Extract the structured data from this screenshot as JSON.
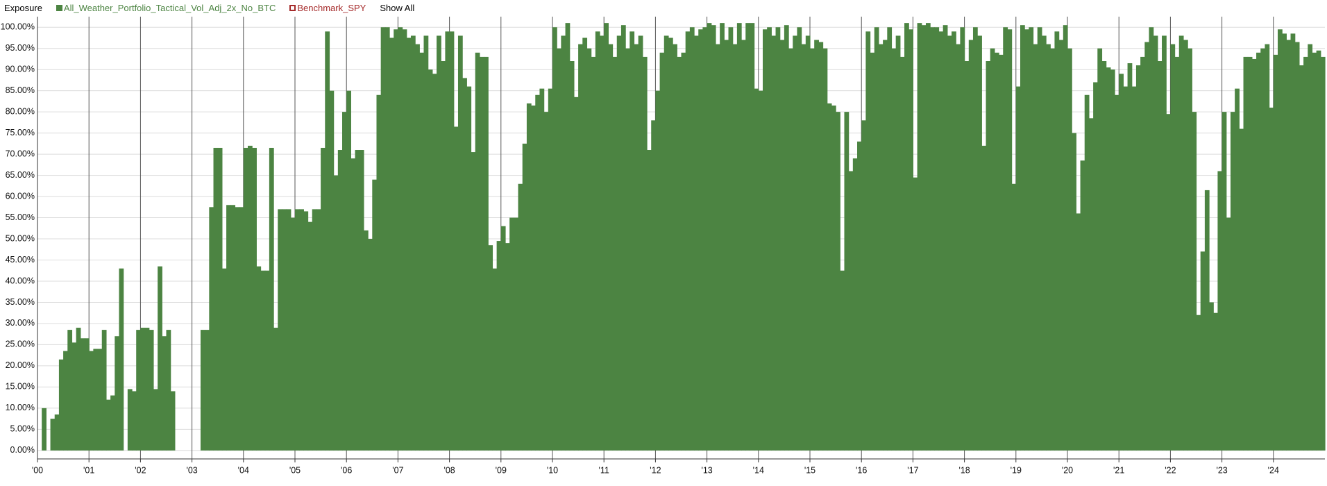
{
  "chart_data": {
    "type": "bar",
    "title": "Exposure",
    "show_all": "Show All",
    "series": [
      {
        "name": "All_Weather_Portfolio_Tactical_Vol_Adj_2x_No_BTC",
        "color": "#4c8442",
        "values": [
          0,
          10,
          0,
          7.5,
          8.5,
          21.5,
          23.5,
          28.5,
          25.5,
          29,
          26.5,
          26.5,
          23.5,
          24,
          24,
          28.5,
          12,
          13,
          27,
          43,
          0,
          14.5,
          14,
          28.5,
          29,
          29,
          28.5,
          14.5,
          43.5,
          27,
          28.5,
          14,
          0,
          0,
          0,
          0,
          0,
          0,
          28.5,
          28.5,
          57.5,
          71.5,
          71.5,
          43,
          58,
          58,
          57.5,
          57.5,
          71.5,
          72,
          71.5,
          43.5,
          42.5,
          42.5,
          71.5,
          29,
          57,
          57,
          57,
          55,
          57,
          57,
          56.5,
          54,
          57,
          57,
          71.5,
          99,
          85,
          65,
          71,
          80,
          85,
          69,
          71,
          71,
          52,
          50,
          64,
          84,
          100,
          100,
          97.5,
          99.5,
          100,
          99.5,
          97.5,
          98,
          96,
          94,
          98,
          90,
          89,
          98,
          92,
          99,
          99,
          76.5,
          98,
          88,
          86,
          70.5,
          94,
          93,
          93,
          48.5,
          43,
          49.5,
          53,
          49,
          55,
          55,
          63,
          72.5,
          82,
          81.5,
          84,
          85.5,
          80,
          85.5,
          100,
          95,
          98,
          101,
          92,
          83.5,
          96,
          97.5,
          95,
          93,
          99,
          98,
          101,
          96,
          93,
          98,
          100.5,
          95,
          99,
          96,
          98,
          93,
          71,
          78,
          85,
          94,
          98,
          97.5,
          96,
          93,
          94,
          99,
          100,
          98,
          99.5,
          100,
          101,
          100.5,
          96,
          101,
          97,
          100,
          96,
          101,
          97,
          101,
          101,
          85.5,
          85,
          99.5,
          100,
          98,
          100,
          97,
          100.5,
          95,
          98,
          100,
          96,
          98,
          95,
          97,
          96.5,
          95,
          82,
          81.5,
          80,
          42.5,
          80,
          66,
          69,
          73,
          78,
          99,
          94,
          100,
          96,
          97,
          100,
          95,
          98,
          93,
          101,
          99.5,
          64.5,
          101,
          100.5,
          101,
          100,
          100,
          99,
          100.5,
          98,
          99,
          96,
          100,
          92,
          97,
          100,
          98,
          72,
          92,
          95,
          94,
          93.5,
          100,
          99.5,
          63,
          86,
          100.5,
          99.5,
          100,
          96,
          100,
          98,
          96,
          95,
          99,
          97,
          100.5,
          95,
          75,
          56,
          68.5,
          84,
          78.5,
          87,
          95,
          92,
          90.5,
          90,
          84,
          89,
          86,
          91.5,
          86,
          91,
          93,
          96.5,
          100,
          98,
          92,
          98,
          79.5,
          96,
          93,
          98,
          97,
          95,
          80,
          32,
          47,
          61.5,
          35,
          32.5,
          66,
          80,
          55,
          80,
          85.5,
          76,
          93,
          93,
          92.5,
          94,
          95,
          96,
          81,
          93.5,
          99.5,
          98.5,
          97,
          98.5,
          96.5,
          91,
          93,
          96,
          94,
          94.5,
          93
        ]
      }
    ],
    "hidden_series": [
      {
        "name": "Benchmark_SPY",
        "color": "#a52a2a"
      }
    ],
    "categories": [
      "'00",
      null,
      null,
      null,
      null,
      null,
      null,
      null,
      null,
      null,
      null,
      null,
      "'01",
      null,
      null,
      null,
      null,
      null,
      null,
      null,
      null,
      null,
      null,
      null,
      "'02",
      null,
      null,
      null,
      null,
      null,
      null,
      null,
      null,
      null,
      null,
      null,
      "'03",
      null,
      null,
      null,
      null,
      null,
      null,
      null,
      null,
      null,
      null,
      null,
      "'04",
      null,
      null,
      null,
      null,
      null,
      null,
      null,
      null,
      null,
      null,
      null,
      "'05",
      null,
      null,
      null,
      null,
      null,
      null,
      null,
      null,
      null,
      null,
      null,
      "'06",
      null,
      null,
      null,
      null,
      null,
      null,
      null,
      null,
      null,
      null,
      null,
      "'07",
      null,
      null,
      null,
      null,
      null,
      null,
      null,
      null,
      null,
      null,
      null,
      "'08",
      null,
      null,
      null,
      null,
      null,
      null,
      null,
      null,
      null,
      null,
      null,
      "'09",
      null,
      null,
      null,
      null,
      null,
      null,
      null,
      null,
      null,
      null,
      null,
      "'10",
      null,
      null,
      null,
      null,
      null,
      null,
      null,
      null,
      null,
      null,
      null,
      "'11",
      null,
      null,
      null,
      null,
      null,
      null,
      null,
      null,
      null,
      null,
      null,
      "'12",
      null,
      null,
      null,
      null,
      null,
      null,
      null,
      null,
      null,
      null,
      null,
      "'13",
      null,
      null,
      null,
      null,
      null,
      null,
      null,
      null,
      null,
      null,
      null,
      "'14",
      null,
      null,
      null,
      null,
      null,
      null,
      null,
      null,
      null,
      null,
      null,
      "'15",
      null,
      null,
      null,
      null,
      null,
      null,
      null,
      null,
      null,
      null,
      null,
      "'16",
      null,
      null,
      null,
      null,
      null,
      null,
      null,
      null,
      null,
      null,
      null,
      "'17",
      null,
      null,
      null,
      null,
      null,
      null,
      null,
      null,
      null,
      null,
      null,
      "'18",
      null,
      null,
      null,
      null,
      null,
      null,
      null,
      null,
      null,
      null,
      null,
      "'19",
      null,
      null,
      null,
      null,
      null,
      null,
      null,
      null,
      null,
      null,
      null,
      "'20",
      null,
      null,
      null,
      null,
      null,
      null,
      null,
      null,
      null,
      null,
      null,
      "'21",
      null,
      null,
      null,
      null,
      null,
      null,
      null,
      null,
      null,
      null,
      null,
      "'22",
      null,
      null,
      null,
      null,
      null,
      null,
      null,
      null,
      null,
      null,
      null,
      "'23",
      null,
      null,
      null,
      null,
      null,
      null,
      null,
      null,
      null,
      null,
      null,
      "'24",
      null,
      null,
      null,
      null,
      null,
      null,
      null,
      null,
      null,
      null,
      null
    ],
    "ylim": [
      -2,
      102.5
    ],
    "yticks": [
      {
        "value": 0,
        "label": "0.00%"
      },
      {
        "value": 5,
        "label": "5.00%"
      },
      {
        "value": 10,
        "label": "10.00%"
      },
      {
        "value": 15,
        "label": "15.00%"
      },
      {
        "value": 20,
        "label": "20.00%"
      },
      {
        "value": 25,
        "label": "25.00%"
      },
      {
        "value": 30,
        "label": "30.00%"
      },
      {
        "value": 35,
        "label": "35.00%"
      },
      {
        "value": 40,
        "label": "40.00%"
      },
      {
        "value": 45,
        "label": "45.00%"
      },
      {
        "value": 50,
        "label": "50.00%"
      },
      {
        "value": 55,
        "label": "55.00%"
      },
      {
        "value": 60,
        "label": "60.00%"
      },
      {
        "value": 65,
        "label": "65.00%"
      },
      {
        "value": 70,
        "label": "70.00%"
      },
      {
        "value": 75,
        "label": "75.00%"
      },
      {
        "value": 80,
        "label": "80.00%"
      },
      {
        "value": 85,
        "label": "85.00%"
      },
      {
        "value": 90,
        "label": "90.00%"
      },
      {
        "value": 95,
        "label": "95.00%"
      },
      {
        "value": 100,
        "label": "100.00%"
      }
    ],
    "grid": true
  }
}
